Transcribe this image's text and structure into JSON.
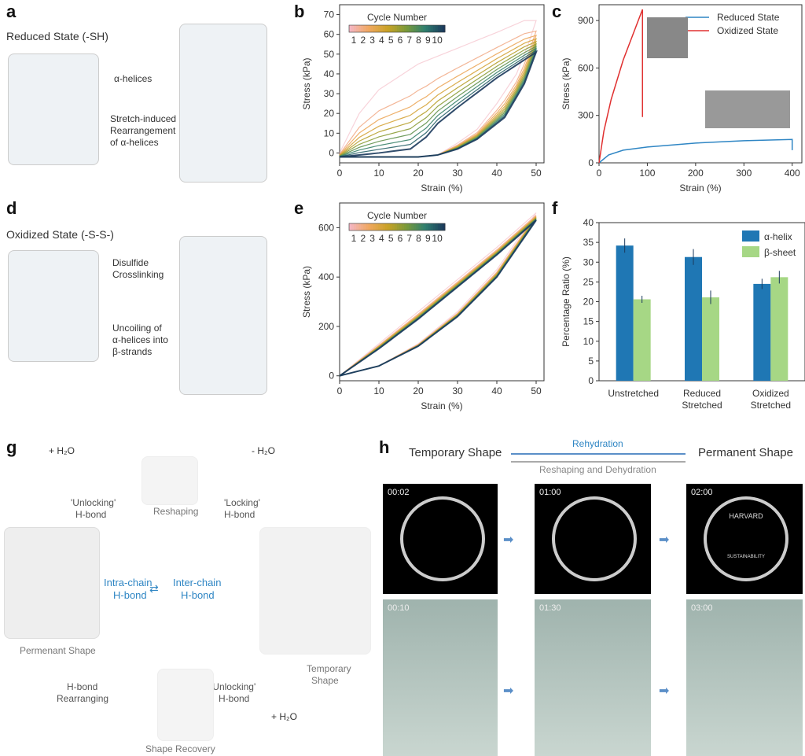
{
  "panels": {
    "a": "a",
    "b": "b",
    "c": "c",
    "d": "d",
    "e": "e",
    "f": "f",
    "g": "g",
    "h": "h"
  },
  "a": {
    "state": "Reduced State (-SH)",
    "helices": "α-helices",
    "rearr1": "Stretch-induced",
    "rearr2": "Rearrangement",
    "rearr3": "of α-helices"
  },
  "d": {
    "state": "Oxidized State (-S-S-)",
    "cross1": "Disulfide",
    "cross2": "Crosslinking",
    "unc1": "Uncoiling of",
    "unc2": "α-helices into",
    "unc3": "β-strands"
  },
  "g": {
    "h2o_plus": "+ H₂O",
    "h2o_minus": "- H₂O",
    "unlock1": "'Unlocking'",
    "unlock2": "H-bond",
    "lock1": "'Locking'",
    "lock2": "H-bond",
    "reshaping": "Reshaping",
    "intra1": "Intra-chain",
    "intra2": "H-bond",
    "inter1": "Inter-chain",
    "inter2": "H-bond",
    "permanent": "Permenant Shape",
    "temp1": "Temporary",
    "temp2": "Shape",
    "rearr1": "H-bond",
    "rearr2": "Rearranging",
    "unlock3": "'Unlocking'",
    "unlock4": "H-bond",
    "recovery": "Shape Recovery",
    "h2o_plus2": "+ H₂O"
  },
  "h": {
    "temporary": "Temporary Shape",
    "permanent": "Permanent Shape",
    "rehydration": "Rehydration",
    "reshaping": "Reshaping and Dehydration",
    "times_top": [
      "00:02",
      "01:00",
      "02:00"
    ],
    "times_bottom": [
      "00:10",
      "01:30",
      "03:00"
    ],
    "logo_top": "HARVARD",
    "logo_bottom": "SUSTAINABILITY"
  },
  "colors": {
    "cycle_scale": [
      "#f4b6c2",
      "#f0a860",
      "#c9a227",
      "#7a9a3a",
      "#2f7f6f",
      "#1b3a5c"
    ],
    "reduced": "#2f86c4",
    "oxidized": "#e03030",
    "alpha": "#1f77b4",
    "beta": "#a6d785"
  },
  "chart_data": [
    {
      "type": "line",
      "panel": "b",
      "xlabel": "Strain (%)",
      "ylabel": "Stress (kPa)",
      "xlim": [
        0,
        52
      ],
      "ylim": [
        -5,
        75
      ],
      "xticks": [
        0,
        10,
        20,
        30,
        40,
        50
      ],
      "yticks": [
        0,
        10,
        20,
        30,
        40,
        50,
        60,
        70
      ],
      "legend_title": "Cycle Number",
      "legend_ticks": [
        "1",
        "2",
        "3",
        "4",
        "5",
        "6",
        "7",
        "8",
        "9",
        "10"
      ],
      "cycles": {
        "first": {
          "loading": [
            [
              0,
              0
            ],
            [
              5,
              20
            ],
            [
              10,
              32
            ],
            [
              20,
              45
            ],
            [
              30,
              53
            ],
            [
              40,
              61
            ],
            [
              47,
              67
            ],
            [
              50,
              67
            ]
          ],
          "unloading": [
            [
              50,
              67
            ],
            [
              48,
              55
            ],
            [
              45,
              40
            ],
            [
              40,
              25
            ],
            [
              35,
              12
            ],
            [
              30,
              5
            ],
            [
              25,
              -1
            ],
            [
              20,
              -2
            ],
            [
              0,
              -2
            ]
          ]
        },
        "last": {
          "loading": [
            [
              0,
              -2
            ],
            [
              10,
              0
            ],
            [
              18,
              2
            ],
            [
              22,
              8
            ],
            [
              25,
              15
            ],
            [
              30,
              23
            ],
            [
              40,
              38
            ],
            [
              50,
              51
            ]
          ],
          "unloading": [
            [
              50,
              51
            ],
            [
              47,
              35
            ],
            [
              42,
              18
            ],
            [
              35,
              7
            ],
            [
              30,
              2
            ],
            [
              25,
              -1
            ],
            [
              20,
              -2
            ],
            [
              0,
              -2
            ]
          ]
        }
      }
    },
    {
      "type": "line",
      "panel": "c",
      "xlabel": "Strain (%)",
      "ylabel": "Stress (kPa)",
      "xlim": [
        0,
        420
      ],
      "ylim": [
        0,
        1000
      ],
      "xticks": [
        0,
        100,
        200,
        300,
        400
      ],
      "yticks": [
        0,
        300,
        600,
        900
      ],
      "series": [
        {
          "name": "Reduced State",
          "points": [
            [
              0,
              0
            ],
            [
              20,
              50
            ],
            [
              50,
              80
            ],
            [
              100,
              100
            ],
            [
              200,
              125
            ],
            [
              300,
              140
            ],
            [
              400,
              148
            ],
            [
              400,
              80
            ]
          ]
        },
        {
          "name": "Oxidized State",
          "points": [
            [
              0,
              0
            ],
            [
              10,
              200
            ],
            [
              25,
              400
            ],
            [
              50,
              650
            ],
            [
              75,
              850
            ],
            [
              90,
              970
            ],
            [
              90,
              290
            ]
          ]
        }
      ]
    },
    {
      "type": "line",
      "panel": "e",
      "xlabel": "Strain (%)",
      "ylabel": "Stress (kPa)",
      "xlim": [
        0,
        52
      ],
      "ylim": [
        -20,
        700
      ],
      "xticks": [
        0,
        10,
        20,
        30,
        40,
        50
      ],
      "yticks": [
        0,
        200,
        400,
        600
      ],
      "legend_title": "Cycle Number",
      "legend_ticks": [
        "1",
        "2",
        "3",
        "4",
        "5",
        "6",
        "7",
        "8",
        "9",
        "10"
      ],
      "cycles": {
        "first": {
          "loading": [
            [
              0,
              0
            ],
            [
              10,
              130
            ],
            [
              20,
              260
            ],
            [
              30,
              390
            ],
            [
              40,
              520
            ],
            [
              50,
              660
            ]
          ],
          "unloading": [
            [
              50,
              660
            ],
            [
              40,
              430
            ],
            [
              30,
              260
            ],
            [
              20,
              130
            ],
            [
              10,
              40
            ],
            [
              0,
              0
            ]
          ]
        },
        "last": {
          "loading": [
            [
              0,
              0
            ],
            [
              10,
              110
            ],
            [
              20,
              230
            ],
            [
              30,
              360
            ],
            [
              40,
              490
            ],
            [
              50,
              630
            ]
          ],
          "unloading": [
            [
              50,
              630
            ],
            [
              40,
              400
            ],
            [
              30,
              240
            ],
            [
              20,
              120
            ],
            [
              10,
              40
            ],
            [
              0,
              0
            ]
          ]
        }
      }
    },
    {
      "type": "bar",
      "panel": "f",
      "ylabel": "Percentage Ratio (%)",
      "ylim": [
        0,
        40
      ],
      "yticks": [
        0,
        5,
        10,
        15,
        20,
        25,
        30,
        35,
        40
      ],
      "categories": [
        "Unstretched",
        "Reduced\nStretched",
        "Oxidized\nStretched"
      ],
      "series": [
        {
          "name": "α-helix",
          "values": [
            34.2,
            31.3,
            24.5
          ],
          "err": [
            1.8,
            2.0,
            1.3
          ]
        },
        {
          "name": "β-sheet",
          "values": [
            20.6,
            21.1,
            26.2
          ],
          "err": [
            0.9,
            1.7,
            1.6
          ]
        }
      ]
    }
  ]
}
